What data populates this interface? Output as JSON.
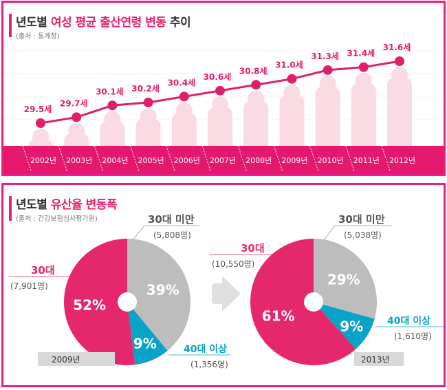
{
  "chart_data": [
    {
      "type": "line",
      "title_prefix": "년도별 ",
      "title_highlight": "여성 평균 출산연령 변동",
      "title_suffix": " 추이",
      "source": "(출처 : 통계청)",
      "categories": [
        "2002년",
        "2003년",
        "2004년",
        "2005년",
        "2006년",
        "2007년",
        "2008년",
        "2009년",
        "2010년",
        "2011년",
        "2012년"
      ],
      "values": [
        29.5,
        29.7,
        30.1,
        30.2,
        30.4,
        30.6,
        30.8,
        31.0,
        31.3,
        31.4,
        31.6
      ],
      "value_labels": [
        "29.5세",
        "29.7세",
        "30.1세",
        "30.2세",
        "30.4세",
        "30.6세",
        "30.8세",
        "31.0세",
        "31.3세",
        "31.4세",
        "31.6세"
      ],
      "ylabel": "",
      "xlabel": "",
      "ylim": [
        29.0,
        32.0
      ],
      "colors": {
        "line": "#e01f6b",
        "figure": "#fadbe4",
        "band": "#e4196d"
      }
    },
    {
      "type": "pie",
      "title_prefix": "년도별 ",
      "title_highlight": "유산율 변동폭",
      "source": "(출처 : 건강보험심사평가원)",
      "pies": [
        {
          "year": "2009년",
          "slices": [
            {
              "label": "30대 미만",
              "count": "(5,808명)",
              "percent": 39,
              "percent_label": "39%",
              "color": "#bdbdbd"
            },
            {
              "label": "40대 이상",
              "count": "(1,356명)",
              "percent": 9,
              "percent_label": "9%",
              "color": "#0aa3c8"
            },
            {
              "label": "30대",
              "count": "(7,901명)",
              "percent": 52,
              "percent_label": "52%",
              "color": "#e5286c"
            }
          ]
        },
        {
          "year": "2013년",
          "slices": [
            {
              "label": "30대 미만",
              "count": "(5,038명)",
              "percent": 29,
              "percent_label": "29%",
              "color": "#bdbdbd"
            },
            {
              "label": "40대 이상",
              "count": "(1,610명)",
              "percent": 9,
              "percent_label": "9%",
              "color": "#0aa3c8"
            },
            {
              "label": "30대",
              "count": "(10,550명)",
              "percent": 61,
              "percent_label": "61%",
              "color": "#e5286c"
            }
          ]
        }
      ],
      "arrow_icon": "arrow-right-icon"
    }
  ]
}
